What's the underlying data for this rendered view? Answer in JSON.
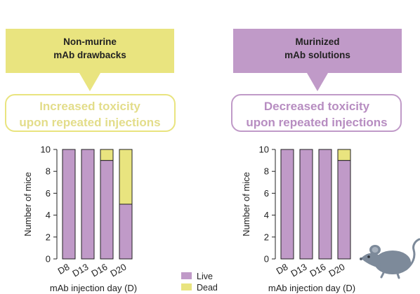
{
  "colors": {
    "yellow": "#e9e47f",
    "purple": "#c09ac8",
    "live": "#c09ac8",
    "dead": "#e9e47f"
  },
  "left": {
    "banner_line1": "Non-murine",
    "banner_line2": "mAb drawbacks",
    "box_line1": "Increased toxicity",
    "box_line2": "upon repeated injections",
    "box_text_color": "#e3dd8a"
  },
  "right": {
    "banner_line1": "Murinized",
    "banner_line2": "mAb solutions",
    "box_line1": "Decreased toxicity",
    "box_line2": "upon repeated injections",
    "box_text_color": "#b78dc1"
  },
  "legend": {
    "live": "Live",
    "dead": "Dead"
  },
  "mouse_icon": "mouse-icon",
  "chart_data": [
    {
      "type": "bar",
      "stacked": true,
      "categories": [
        "D8",
        "D13",
        "D16",
        "D20"
      ],
      "series": [
        {
          "name": "Live",
          "values": [
            10,
            10,
            9,
            5
          ]
        },
        {
          "name": "Dead",
          "values": [
            0,
            0,
            1,
            5
          ]
        }
      ],
      "xlabel": "mAb injection day (D)",
      "ylabel": "Number of mice",
      "ylim": [
        0,
        10
      ],
      "yticks": [
        0,
        2,
        4,
        6,
        8,
        10
      ]
    },
    {
      "type": "bar",
      "stacked": true,
      "categories": [
        "D8",
        "D13",
        "D16",
        "D20"
      ],
      "series": [
        {
          "name": "Live",
          "values": [
            10,
            10,
            10,
            9
          ]
        },
        {
          "name": "Dead",
          "values": [
            0,
            0,
            0,
            1
          ]
        }
      ],
      "xlabel": "mAb injection day (D)",
      "ylabel": "Number of mice",
      "ylim": [
        0,
        10
      ],
      "yticks": [
        0,
        2,
        4,
        6,
        8,
        10
      ]
    }
  ]
}
